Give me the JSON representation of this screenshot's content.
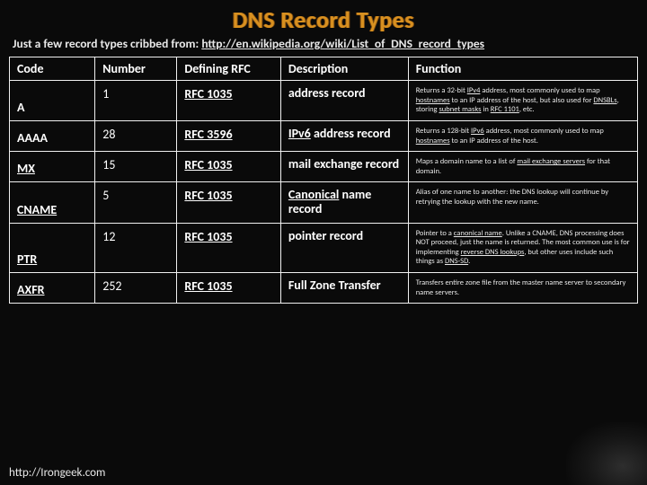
{
  "title": "DNS Record Types",
  "subtitle_prefix": "Just a few record types cribbed from: ",
  "subtitle_link": "http://en.wikipedia.org/wiki/List_of_DNS_record_types",
  "footer": "http://Irongeek.com",
  "columns": [
    "Code",
    "Number",
    "Defining RFC",
    "Description",
    "Function"
  ],
  "rows": [
    {
      "code": "A",
      "code_u": false,
      "number": "1",
      "rfc": "RFC 1035",
      "desc": "address record",
      "func": "Returns a 32-bit <span class=\"u\">IPv4</span> address, most commonly used to map <span class=\"u\">hostnames</span> to an IP address of the host, but also used for <span class=\"u\">DNSBLs</span>, storing <span class=\"u\">subnet masks</span> in <span class=\"u\">RFC 1101</span>, etc."
    },
    {
      "code": "AAAA",
      "code_u": false,
      "code_bottom": true,
      "number": "28",
      "rfc": "RFC 3596",
      "desc": "<span class=\"u\">IPv6</span> address record",
      "func": "Returns a 128-bit <span class=\"u\">IPv6</span> address, most commonly used to map <span class=\"u\">hostnames</span> to an IP address of the host."
    },
    {
      "code": "MX",
      "code_u": true,
      "number": "15",
      "rfc": "RFC 1035",
      "desc": "mail exchange record",
      "func": "Maps a domain name to a list of <span class=\"u\">mail exchange servers</span> for that domain."
    },
    {
      "code": "CNAME",
      "code_u": true,
      "number": "5",
      "rfc": "RFC 1035",
      "desc": "<span class=\"u\">Canonical</span> name record",
      "func": "Alias of one name to another: the DNS lookup will continue by retrying the lookup with the new name."
    },
    {
      "code": "PTR",
      "code_u": true,
      "number": "12",
      "rfc": "RFC 1035",
      "desc": "pointer record",
      "func": "Pointer to a <span class=\"u\">canonical name</span>. Unlike a CNAME, DNS processing does NOT proceed, just the name is returned. The most common use is for implementing <span class=\"u\">reverse DNS lookups</span>, but other uses include such things as <span class=\"u\">DNS-SD</span>."
    },
    {
      "code": "AXFR",
      "code_u": true,
      "number": "252",
      "rfc": "RFC 1035",
      "desc": "Full Zone Transfer",
      "func": "Transfers entire zone file from the master name server to secondary name servers."
    }
  ]
}
